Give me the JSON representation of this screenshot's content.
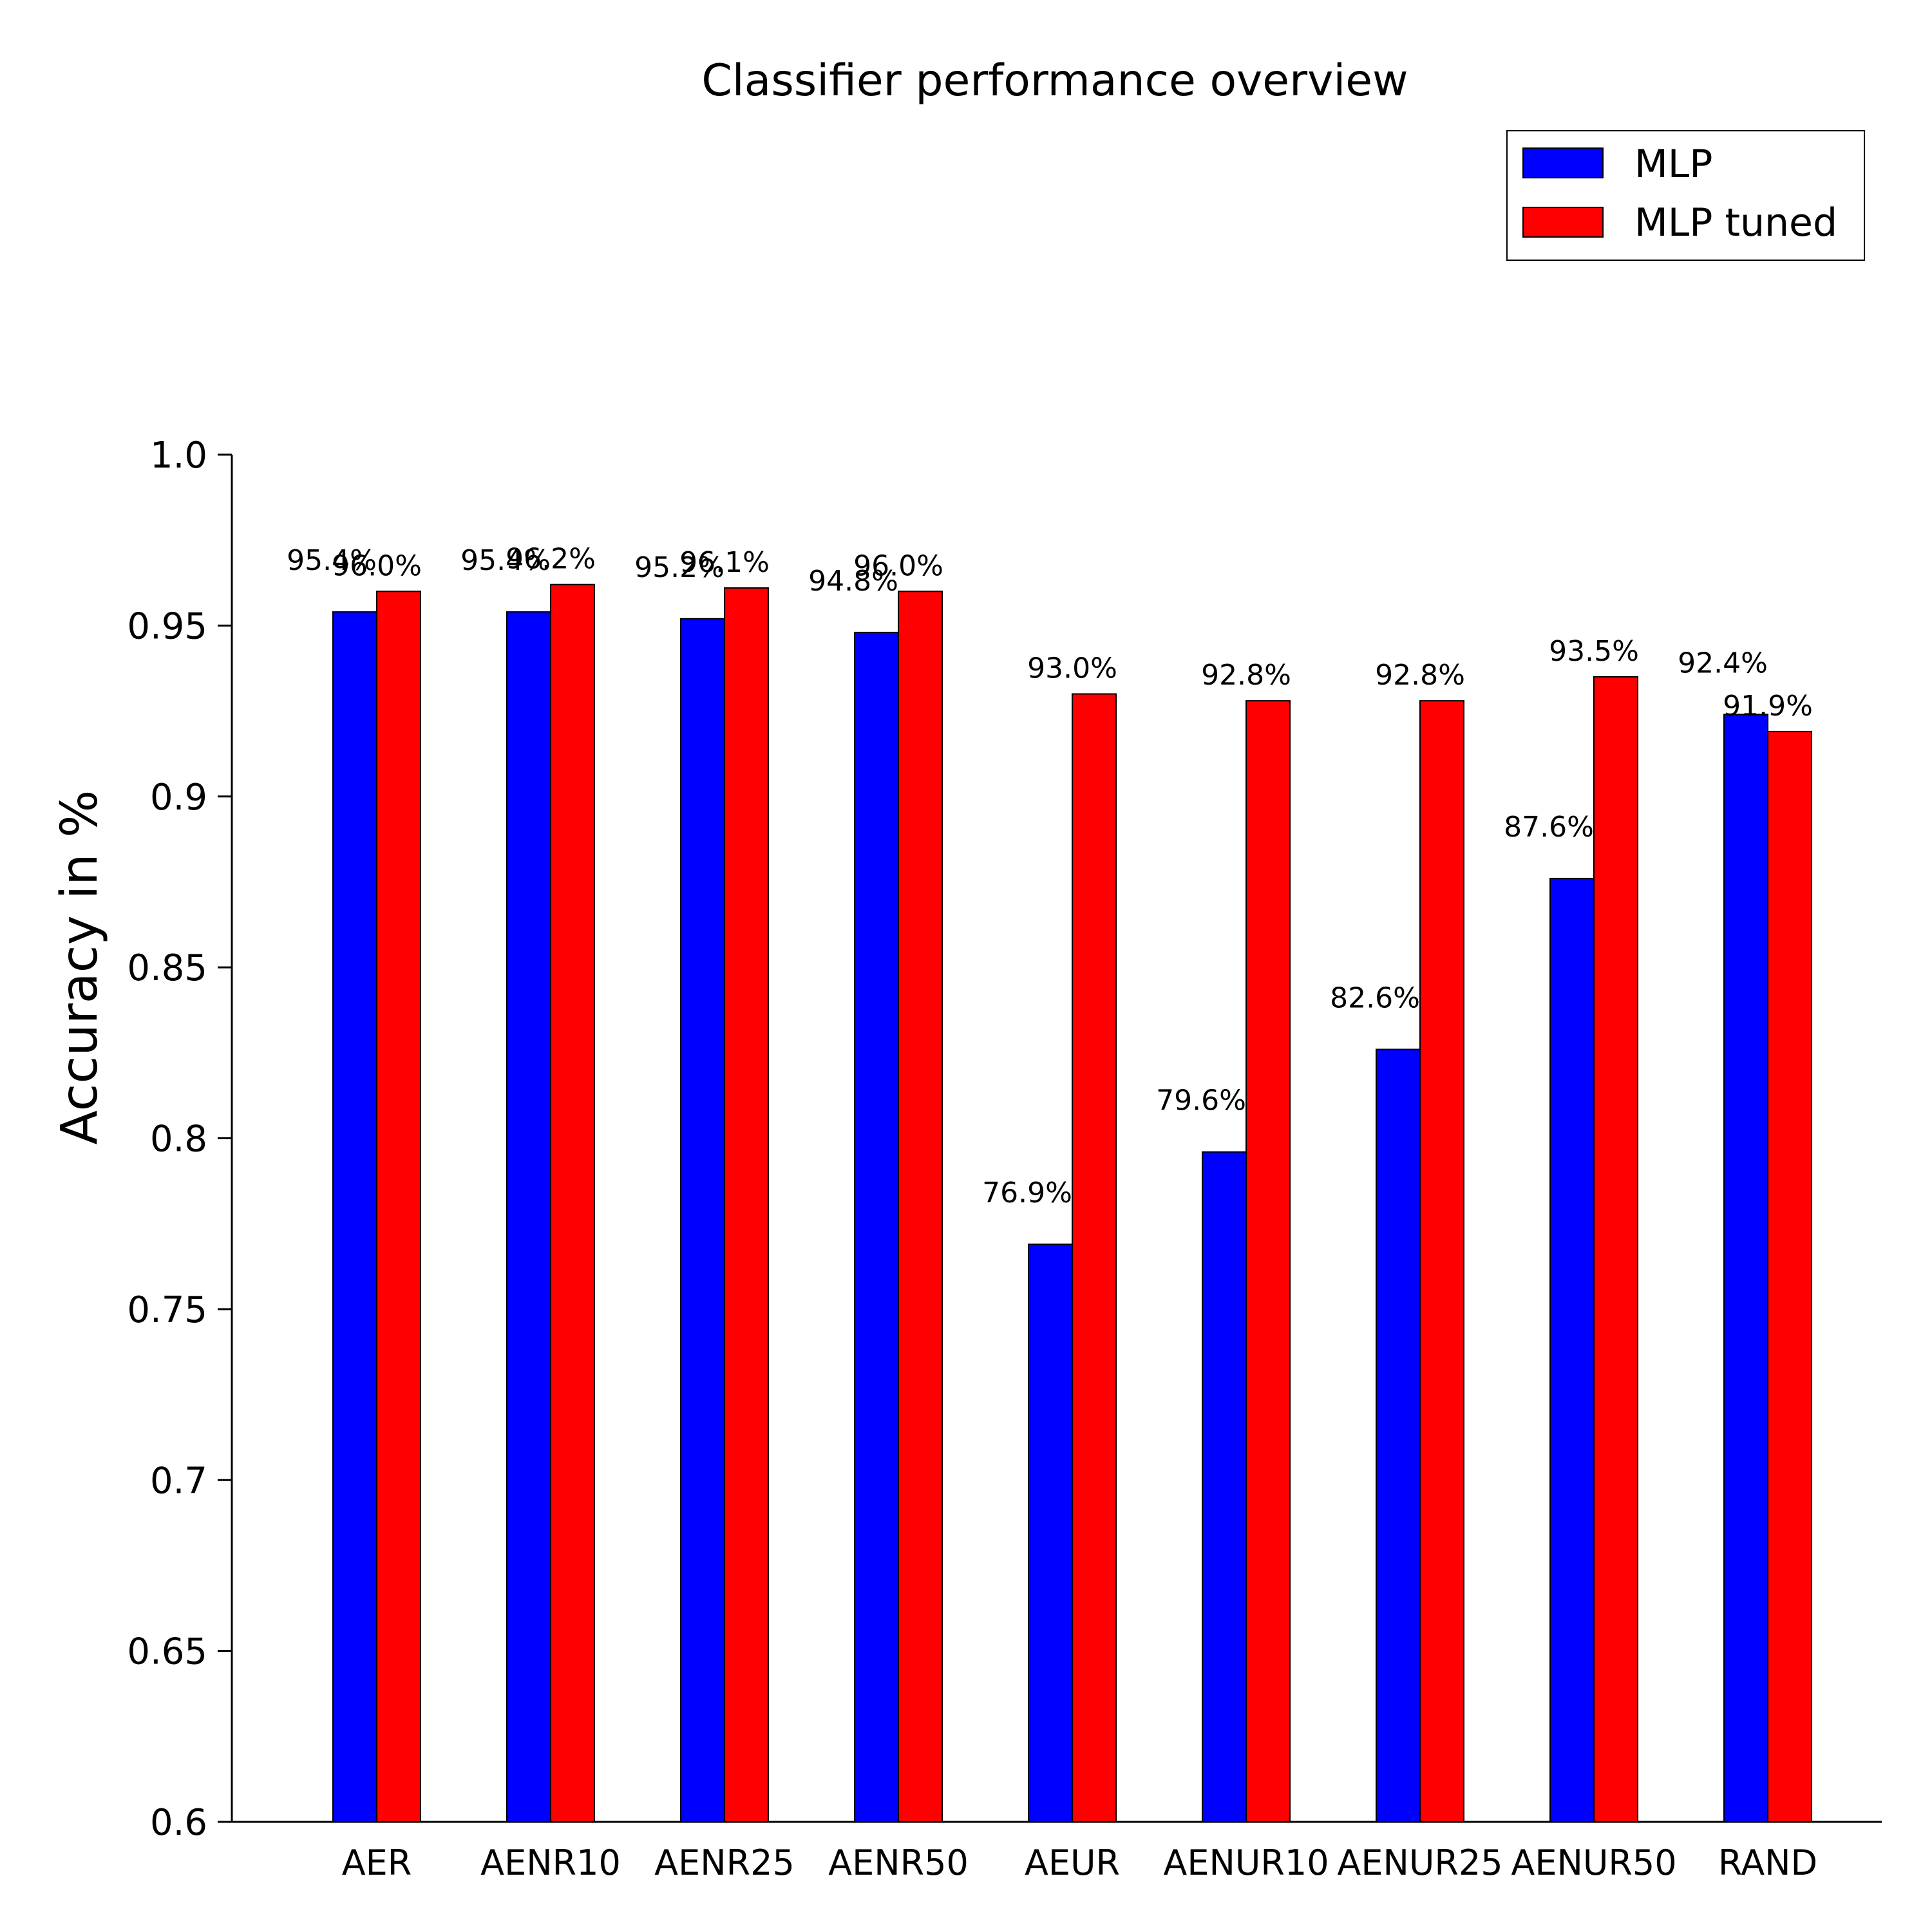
{
  "chart_data": {
    "type": "bar",
    "title": "Classifier performance overview",
    "xlabel": "",
    "ylabel": "Accuracy in %",
    "ylim": [
      0.6,
      1.0
    ],
    "yticks": [
      "0.6",
      "0.65",
      "0.7",
      "0.75",
      "0.8",
      "0.85",
      "0.9",
      "0.95",
      "1.0"
    ],
    "categories": [
      "AER",
      "AENR10",
      "AENR25",
      "AENR50",
      "AEUR",
      "AENUR10",
      "AENUR25",
      "AENUR50",
      "RAND"
    ],
    "series": [
      {
        "name": "MLP",
        "color": "#0000ff",
        "values": [
          0.954,
          0.954,
          0.952,
          0.948,
          0.769,
          0.796,
          0.826,
          0.876,
          0.924
        ],
        "labels": [
          "95.4%",
          "95.4%",
          "95.2%",
          "94.8%",
          "76.9%",
          "79.6%",
          "82.6%",
          "87.6%",
          "92.4%"
        ]
      },
      {
        "name": "MLP tuned",
        "color": "#ff0000",
        "values": [
          0.96,
          0.962,
          0.961,
          0.96,
          0.93,
          0.928,
          0.928,
          0.935,
          0.919
        ],
        "labels": [
          "96.0%",
          "96.2%",
          "96.1%",
          "96.0%",
          "93.0%",
          "92.8%",
          "92.8%",
          "93.5%",
          "91.9%"
        ]
      }
    ],
    "legend": "top-right",
    "grid": false
  }
}
